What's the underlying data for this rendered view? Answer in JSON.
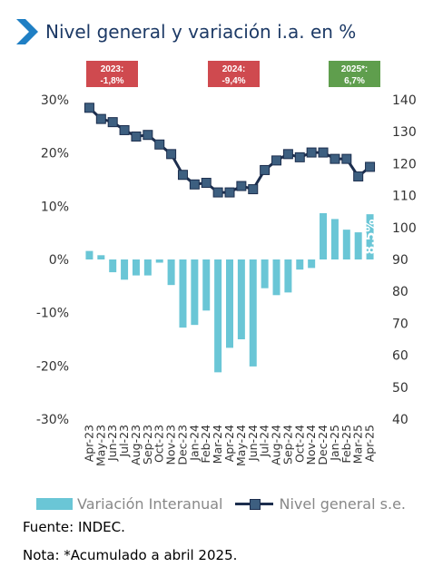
{
  "title": "Nivel general y variación i.a. en %",
  "annotations": [
    {
      "year": "2023:",
      "value": "-1,8%",
      "color": "#cf4a4f"
    },
    {
      "year": "2024:",
      "value": "-9,4%",
      "color": "#cf4a4f"
    },
    {
      "year": "2025*:",
      "value": "6,7%",
      "color": "#5f9e4d"
    }
  ],
  "legend": {
    "bars": "Variación Interanual",
    "line": "Nivel general s.e."
  },
  "footer": {
    "source": "Fuente: INDEC.",
    "note": "Nota: *Acumulado a abril 2025."
  },
  "colors": {
    "bars": "#6ac6d6",
    "line": "#1c2e4e",
    "marker": "#3d5f80",
    "title": "#1d3a66"
  },
  "chart_data": {
    "type": "bar+line",
    "categories": [
      "Apr-23",
      "May-23",
      "Jun-23",
      "Jul-23",
      "Aug-23",
      "Sep-23",
      "Oct-23",
      "Nov-23",
      "Dec-23",
      "Jan-24",
      "Feb-24",
      "Mar-24",
      "Apr-24",
      "May-24",
      "Jun-24",
      "Jul-24",
      "Aug-24",
      "Sep-24",
      "Oct-24",
      "Nov-24",
      "Dec-24",
      "Jan-25",
      "Feb-25",
      "Mar-25",
      "Apr-25"
    ],
    "series": [
      {
        "name": "Variación Interanual",
        "axis": "left",
        "type": "bar",
        "values": [
          1.6,
          0.8,
          -2.4,
          -3.8,
          -3.0,
          -3.0,
          -0.6,
          -4.8,
          -12.8,
          -12.3,
          -9.6,
          -21.2,
          -16.6,
          -15.0,
          -20.1,
          -5.4,
          -6.7,
          -6.2,
          -1.9,
          -1.6,
          8.7,
          7.6,
          5.6,
          5.1,
          8.5
        ]
      },
      {
        "name": "Nivel general s.e.",
        "axis": "right",
        "type": "line",
        "values": [
          137.5,
          134.0,
          133.0,
          130.5,
          128.5,
          129.0,
          126.0,
          123.0,
          116.5,
          113.5,
          114.0,
          111.0,
          111.0,
          113.0,
          112.0,
          118.0,
          121.0,
          123.0,
          122.0,
          123.5,
          123.5,
          121.5,
          121.5,
          116.0,
          119.0
        ]
      }
    ],
    "data_labels": [
      {
        "series": "Variación Interanual",
        "category": "Apr-25",
        "text": "8.5%"
      }
    ],
    "y_left": {
      "ticks": [
        "30%",
        "20%",
        "10%",
        "0%",
        "-10%",
        "-20%",
        "-30%"
      ],
      "ylim": [
        -30,
        30
      ]
    },
    "y_right": {
      "ticks": [
        "140",
        "130",
        "120",
        "110",
        "100",
        "90",
        "80",
        "70",
        "60",
        "50",
        "40"
      ],
      "ylim": [
        40,
        140
      ]
    },
    "grid": false,
    "legend_position": "bottom"
  }
}
